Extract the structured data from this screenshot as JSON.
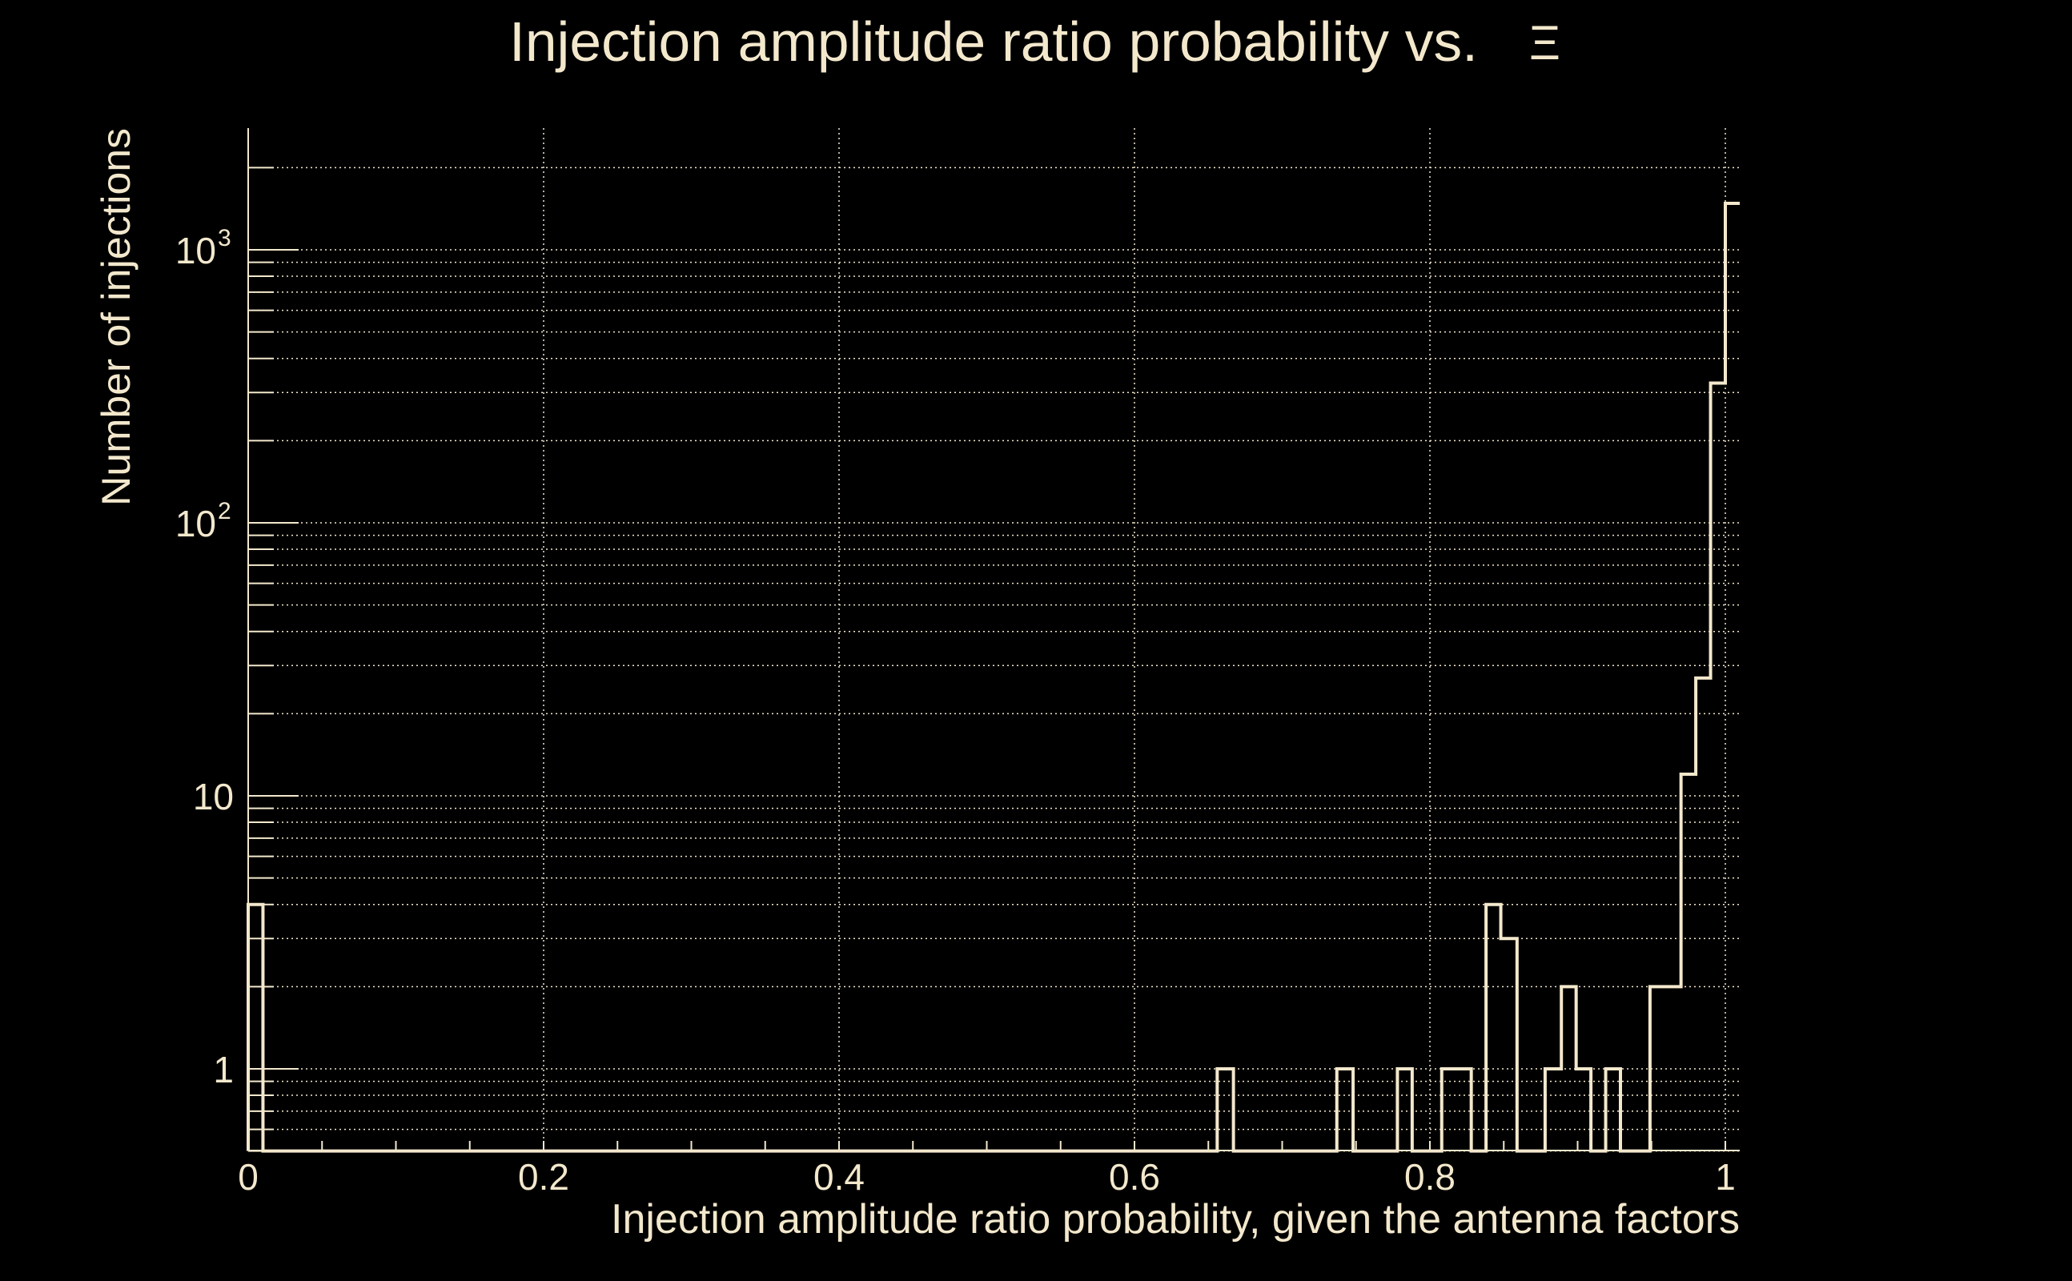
{
  "chart_data": {
    "type": "bar",
    "subtype": "step-histogram",
    "title": "Injection amplitude ratio probability vs.",
    "title_symbol": "Ξ",
    "xlabel": "Injection amplitude ratio probability, given the antenna factors",
    "ylabel": "Number of injections",
    "xlim": [
      0,
      1.0098
    ],
    "ylim": [
      0.5,
      2800
    ],
    "yscale": "log",
    "grid": true,
    "x_ticks": [
      0,
      0.2,
      0.4,
      0.6,
      0.8,
      1
    ],
    "x_tick_labels": [
      "0",
      "0.2",
      "0.4",
      "0.6",
      "0.8",
      "1"
    ],
    "y_ticks": [
      1,
      10,
      100,
      1000
    ],
    "y_tick_labels": [
      {
        "base": "1",
        "exp": ""
      },
      {
        "base": "10",
        "exp": ""
      },
      {
        "base": "10",
        "exp": "2"
      },
      {
        "base": "10",
        "exp": "3"
      }
    ],
    "color": "#f3e8cc",
    "background": "#000000",
    "bins": [
      {
        "start": 0.0,
        "end": 0.01,
        "count": 4
      },
      {
        "start": 0.656,
        "end": 0.667,
        "count": 1
      },
      {
        "start": 0.737,
        "end": 0.748,
        "count": 1
      },
      {
        "start": 0.778,
        "end": 0.788,
        "count": 1
      },
      {
        "start": 0.808,
        "end": 0.818,
        "count": 1
      },
      {
        "start": 0.818,
        "end": 0.828,
        "count": 1
      },
      {
        "start": 0.838,
        "end": 0.848,
        "count": 4
      },
      {
        "start": 0.848,
        "end": 0.859,
        "count": 3
      },
      {
        "start": 0.878,
        "end": 0.889,
        "count": 1
      },
      {
        "start": 0.889,
        "end": 0.899,
        "count": 2
      },
      {
        "start": 0.899,
        "end": 0.909,
        "count": 1
      },
      {
        "start": 0.919,
        "end": 0.929,
        "count": 1
      },
      {
        "start": 0.949,
        "end": 0.96,
        "count": 2
      },
      {
        "start": 0.96,
        "end": 0.97,
        "count": 2
      },
      {
        "start": 0.97,
        "end": 0.98,
        "count": 12
      },
      {
        "start": 0.98,
        "end": 0.99,
        "count": 27
      },
      {
        "start": 0.99,
        "end": 1.0,
        "count": 325
      },
      {
        "start": 1.0,
        "end": 1.011,
        "count": 1480
      }
    ]
  }
}
